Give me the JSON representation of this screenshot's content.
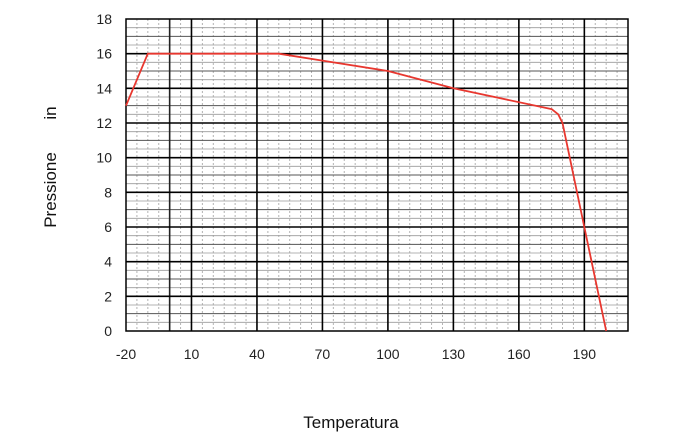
{
  "chart_data": {
    "type": "line",
    "xlabel": "Temperatura",
    "ylabel": "Pressione",
    "ylabel_unit": "in",
    "xlim": [
      -20,
      210
    ],
    "ylim": [
      0,
      18
    ],
    "x_ticks": [
      "-20",
      "10",
      "40",
      "70",
      "100",
      "130",
      "160",
      "190"
    ],
    "y_ticks": [
      "0",
      "2",
      "4",
      "6",
      "8",
      "10",
      "12",
      "14",
      "16",
      "18"
    ],
    "grid": true,
    "series": [
      {
        "color": "#e8372f",
        "x": [
          -20,
          -10,
          50,
          70,
          100,
          130,
          175,
          178,
          180,
          190,
          200
        ],
        "y": [
          13,
          16,
          16,
          15.6,
          15,
          14,
          12.8,
          12.5,
          12,
          6,
          0
        ]
      }
    ]
  }
}
